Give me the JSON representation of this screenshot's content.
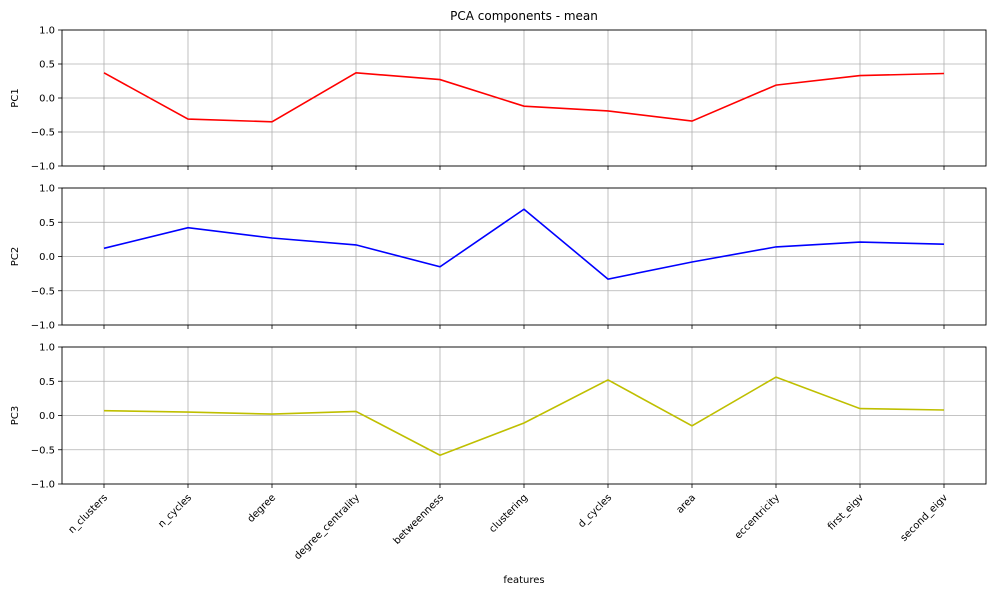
{
  "chart_data": {
    "type": "line",
    "title": "PCA components - mean",
    "xlabel": "features",
    "categories": [
      "n_clusters",
      "n_cycles",
      "degree",
      "degree_centrality",
      "betweenness",
      "clustering",
      "d_cycles",
      "area",
      "eccentricity",
      "first_eigv",
      "second_eigv"
    ],
    "ylim": [
      -1.0,
      1.0
    ],
    "yticks": [
      "1.0",
      "0.5",
      "0.0",
      "−0.5",
      "−1.0"
    ],
    "grid": true,
    "series": [
      {
        "name": "PC1",
        "color": "#ff0000",
        "values": [
          0.37,
          -0.31,
          -0.35,
          0.37,
          0.27,
          -0.12,
          -0.19,
          -0.34,
          0.19,
          0.33,
          0.36
        ]
      },
      {
        "name": "PC2",
        "color": "#0000ff",
        "values": [
          0.12,
          0.42,
          0.27,
          0.17,
          -0.15,
          0.69,
          -0.33,
          -0.08,
          0.14,
          0.21,
          0.18
        ]
      },
      {
        "name": "PC3",
        "color": "#bfbf00",
        "values": [
          0.07,
          0.05,
          0.02,
          0.06,
          -0.58,
          -0.11,
          0.52,
          -0.15,
          0.56,
          0.1,
          0.08
        ]
      }
    ]
  }
}
